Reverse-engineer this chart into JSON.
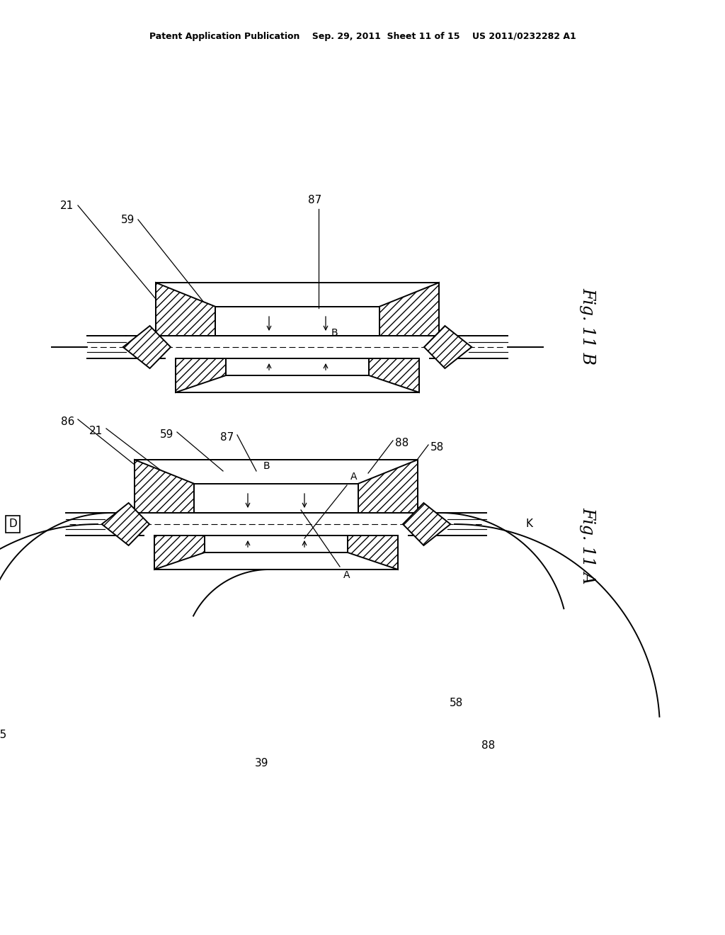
{
  "bg_color": "#ffffff",
  "line_color": "#000000",
  "header_text": "Patent Application Publication    Sep. 29, 2011  Sheet 11 of 15    US 2011/0232282 A1",
  "fig11b_label": "Fig. 11 B",
  "fig11a_label": "Fig. 11 A"
}
